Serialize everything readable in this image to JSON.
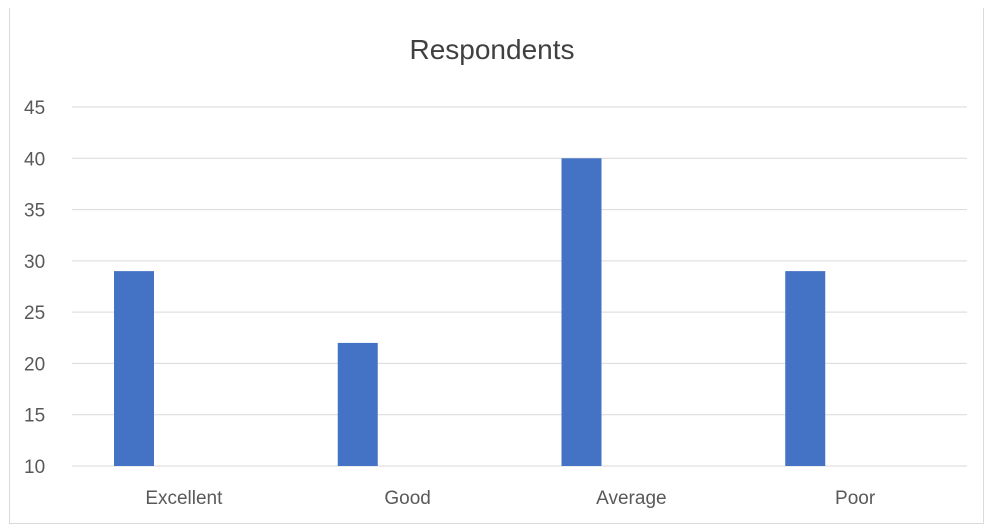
{
  "chart_data": {
    "type": "bar",
    "title": "Respondents",
    "categories": [
      "Excellent",
      "Good",
      "Average",
      "Poor"
    ],
    "series": [
      {
        "values": [
          29,
          22,
          40,
          29
        ]
      }
    ],
    "ylim": [
      10,
      45
    ],
    "yticks": [
      10,
      15,
      20,
      25,
      30,
      35,
      40,
      45
    ],
    "grid": true,
    "colors": {
      "bar": "#4472c4",
      "grid": "#d9d9d9",
      "text": "#595959",
      "title": "#404040"
    }
  }
}
